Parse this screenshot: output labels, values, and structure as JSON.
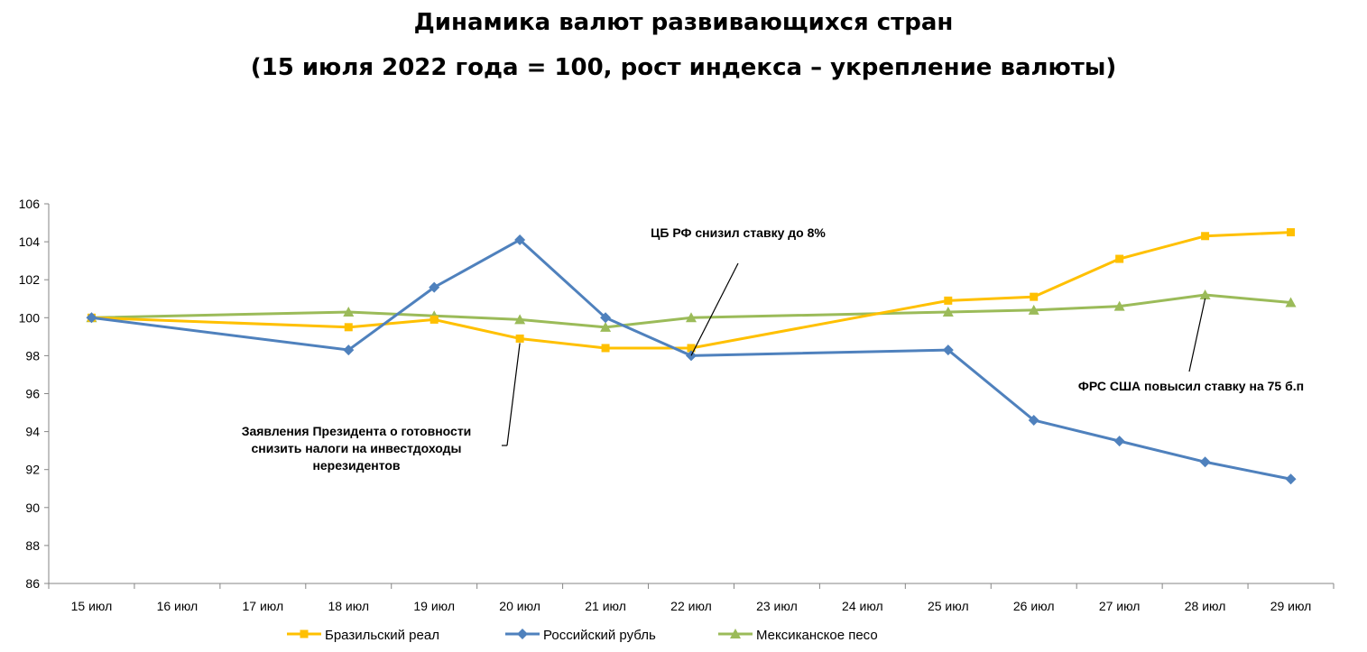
{
  "chart_data": {
    "type": "line",
    "title": "Динамика валют развивающихся стран",
    "subtitle": "(15 июля 2022 года = 100, рост индекса – укрепление валюты)",
    "categories": [
      "15 июл",
      "16 июл",
      "17 июл",
      "18 июл",
      "19 июл",
      "20 июл",
      "21 июл",
      "22 июл",
      "23 июл",
      "24 июл",
      "25 июл",
      "26 июл",
      "27 июл",
      "28 июл",
      "29 июл"
    ],
    "y_ticks": [
      "86",
      "88",
      "90",
      "92",
      "94",
      "96",
      "98",
      "100",
      "102",
      "104",
      "106"
    ],
    "ylim": [
      86,
      106
    ],
    "series": [
      {
        "name": "Бразильский реал",
        "color": "#FFC000",
        "marker": "square",
        "points": [
          {
            "x": "15 июл",
            "y": 100.0
          },
          {
            "x": "18 июл",
            "y": 99.5
          },
          {
            "x": "19 июл",
            "y": 99.9
          },
          {
            "x": "20 июл",
            "y": 98.9
          },
          {
            "x": "21 июл",
            "y": 98.4
          },
          {
            "x": "22 июл",
            "y": 98.4
          },
          {
            "x": "25 июл",
            "y": 100.9
          },
          {
            "x": "26 июл",
            "y": 101.1
          },
          {
            "x": "27 июл",
            "y": 103.1
          },
          {
            "x": "28 июл",
            "y": 104.3
          },
          {
            "x": "29 июл",
            "y": 104.5
          }
        ]
      },
      {
        "name": "Российский рубль",
        "color": "#4F81BD",
        "marker": "diamond",
        "points": [
          {
            "x": "15 июл",
            "y": 100.0
          },
          {
            "x": "18 июл",
            "y": 98.3
          },
          {
            "x": "19 июл",
            "y": 101.6
          },
          {
            "x": "20 июл",
            "y": 104.1
          },
          {
            "x": "21 июл",
            "y": 100.0
          },
          {
            "x": "22 июл",
            "y": 98.0
          },
          {
            "x": "25 июл",
            "y": 98.3
          },
          {
            "x": "26 июл",
            "y": 94.6
          },
          {
            "x": "27 июл",
            "y": 93.5
          },
          {
            "x": "28 июл",
            "y": 92.4
          },
          {
            "x": "29 июл",
            "y": 91.5
          }
        ]
      },
      {
        "name": "Мексиканское песо",
        "color": "#9BBB59",
        "marker": "triangle",
        "points": [
          {
            "x": "15 июл",
            "y": 100.0
          },
          {
            "x": "18 июл",
            "y": 100.3
          },
          {
            "x": "19 июл",
            "y": 100.1
          },
          {
            "x": "20 июл",
            "y": 99.9
          },
          {
            "x": "21 июл",
            "y": 99.5
          },
          {
            "x": "22 июл",
            "y": 100.0
          },
          {
            "x": "25 июл",
            "y": 100.3
          },
          {
            "x": "26 июл",
            "y": 100.4
          },
          {
            "x": "27 июл",
            "y": 100.6
          },
          {
            "x": "28 июл",
            "y": 101.2
          },
          {
            "x": "29 июл",
            "y": 100.8
          }
        ]
      }
    ],
    "annotations": [
      {
        "lines": [
          "Заявления Президента о готовности",
          "снизить налоги на инвестдоходы",
          "нерезидентов"
        ],
        "x": "20 июл",
        "y": 98.9
      },
      {
        "lines": [
          "ЦБ РФ снизил ставку до 8%"
        ],
        "x": "22 июл",
        "y": 98.0
      },
      {
        "lines": [
          "ФРС США повысил ставку на 75 б.п"
        ],
        "x": "28 июл",
        "y": 101.2
      }
    ],
    "legend_position": "bottom"
  }
}
